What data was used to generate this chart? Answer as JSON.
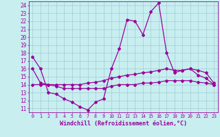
{
  "background_color": "#c8eef0",
  "grid_color": "#a0ccd4",
  "line_color": "#990099",
  "xlabel": "Windchill (Refroidissement éolien,°C)",
  "xlabel_fontsize": 6.0,
  "ytick_fontsize": 5.5,
  "xtick_fontsize": 4.8,
  "xlim": [
    -0.5,
    23.5
  ],
  "ylim": [
    10.5,
    24.5
  ],
  "yticks": [
    11,
    12,
    13,
    14,
    15,
    16,
    17,
    18,
    19,
    20,
    21,
    22,
    23,
    24
  ],
  "xticks": [
    0,
    1,
    2,
    3,
    4,
    5,
    6,
    7,
    8,
    9,
    10,
    11,
    12,
    13,
    14,
    15,
    16,
    17,
    18,
    19,
    20,
    21,
    22,
    23
  ],
  "line1_x": [
    0,
    1,
    2,
    3,
    4,
    5,
    6,
    7,
    8,
    9,
    10,
    11,
    12,
    13,
    14,
    15,
    16,
    17,
    18,
    19,
    20,
    21,
    22,
    23
  ],
  "line1_y": [
    17.5,
    16.0,
    13.0,
    12.8,
    12.2,
    11.8,
    11.2,
    10.8,
    11.8,
    12.2,
    16.0,
    18.5,
    22.2,
    22.0,
    20.3,
    23.2,
    24.3,
    18.0,
    15.5,
    15.8,
    16.0,
    15.2,
    14.8,
    14.0
  ],
  "line2_x": [
    0,
    1,
    2,
    3,
    4,
    5,
    6,
    7,
    8,
    9,
    10,
    11,
    12,
    13,
    14,
    15,
    16,
    17,
    18,
    19,
    20,
    21,
    22,
    23
  ],
  "line2_y": [
    16.0,
    14.2,
    14.0,
    14.0,
    14.0,
    14.0,
    14.0,
    14.2,
    14.3,
    14.5,
    14.8,
    15.0,
    15.2,
    15.3,
    15.5,
    15.6,
    15.8,
    16.0,
    15.8,
    15.8,
    16.0,
    15.8,
    15.5,
    14.2
  ],
  "line3_x": [
    0,
    1,
    2,
    3,
    4,
    5,
    6,
    7,
    8,
    9,
    10,
    11,
    12,
    13,
    14,
    15,
    16,
    17,
    18,
    19,
    20,
    21,
    22,
    23
  ],
  "line3_y": [
    14.0,
    14.0,
    14.0,
    13.8,
    13.5,
    13.5,
    13.5,
    13.5,
    13.5,
    13.5,
    13.8,
    14.0,
    14.0,
    14.0,
    14.2,
    14.2,
    14.3,
    14.5,
    14.5,
    14.5,
    14.5,
    14.3,
    14.2,
    14.0
  ]
}
